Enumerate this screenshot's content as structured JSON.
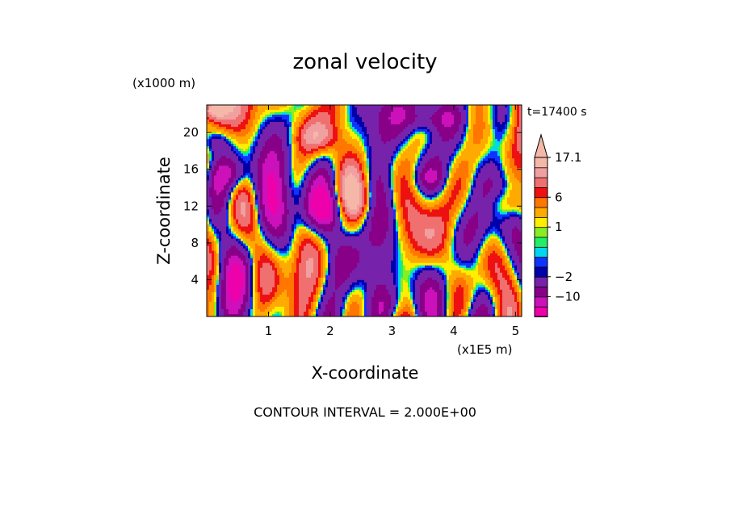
{
  "chart_data": {
    "type": "heatmap",
    "title": "zonal velocity",
    "xlabel": "X-coordinate",
    "ylabel": "Z-coordinate",
    "x_unit": "(x1E5 m)",
    "y_unit": "(x1000 m)",
    "time_label": "t=17400 s",
    "footer": "CONTOUR INTERVAL = 2.000E+00",
    "xlim": [
      0,
      5.1
    ],
    "ylim": [
      0,
      23
    ],
    "x_ticks": [
      {
        "value": 1,
        "label": "1"
      },
      {
        "value": 2,
        "label": "2"
      },
      {
        "value": 3,
        "label": "3"
      },
      {
        "value": 4,
        "label": "4"
      },
      {
        "value": 5,
        "label": "5"
      }
    ],
    "y_ticks": [
      {
        "value": 4,
        "label": "4"
      },
      {
        "value": 8,
        "label": "8"
      },
      {
        "value": 12,
        "label": "12"
      },
      {
        "value": 16,
        "label": "16"
      },
      {
        "value": 20,
        "label": "20"
      }
    ],
    "colorbar": {
      "levels": [
        -18,
        -14,
        -10,
        -6,
        -2,
        -1,
        0,
        0.33,
        0.67,
        1,
        2,
        4,
        6,
        8,
        11,
        14,
        17.1
      ],
      "colors": [
        "#ee00aa",
        "#cc11bb",
        "#880088",
        "#7722aa",
        "#0000aa",
        "#1133ff",
        "#00d8f0",
        "#22ee66",
        "#88ee22",
        "#ffee00",
        "#ffaa00",
        "#ff7700",
        "#ee1111",
        "#f07070",
        "#f0a0a0",
        "#f5b8a8"
      ],
      "labels": [
        {
          "value": 17.1,
          "label": "17.1"
        },
        {
          "value": 6,
          "label": "6"
        },
        {
          "value": 1,
          "label": "1"
        },
        {
          "value": -2,
          "label": "−2"
        },
        {
          "value": -10,
          "label": "−10"
        }
      ],
      "arrow_top": true
    },
    "field_description_note_free": true
  }
}
